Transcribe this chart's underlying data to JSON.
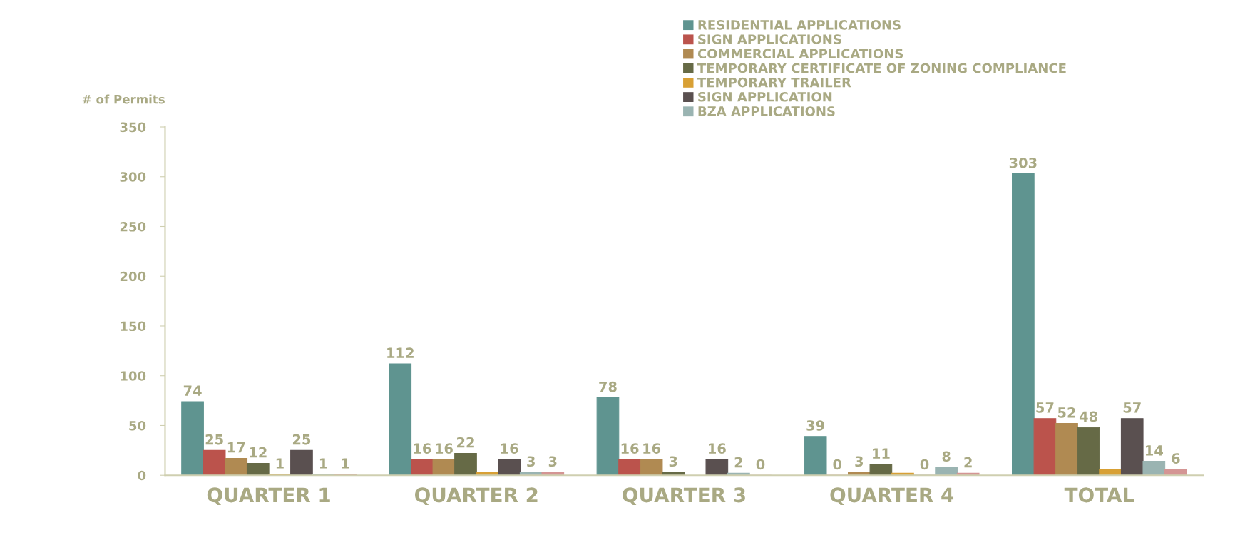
{
  "chart_data": {
    "type": "bar",
    "ylabel": "# of Permits",
    "categories": [
      "QUARTER 1",
      "QUARTER 2",
      "QUARTER 3",
      "QUARTER 4",
      "TOTAL"
    ],
    "series": [
      {
        "name": "RESIDENTIAL APPLICATIONS",
        "color": "#5f9490",
        "values": [
          74,
          112,
          78,
          39,
          303
        ]
      },
      {
        "name": "SIGN APPLICATIONS",
        "color": "#bb534c",
        "values": [
          25,
          16,
          16,
          0,
          57
        ]
      },
      {
        "name": "COMMERCIAL APPLICATIONS",
        "color": "#b08a52",
        "values": [
          17,
          16,
          16,
          3,
          52
        ]
      },
      {
        "name": "TEMPORARY CERTIFICATE OF ZONING COMPLIANCE",
        "color": "#666a46",
        "values": [
          12,
          22,
          3,
          11,
          48
        ]
      },
      {
        "name": "TEMPORARY TRAILER",
        "color": "#d8a035",
        "values": [
          1,
          3,
          null,
          2,
          6
        ],
        "value_labels": [
          "1",
          null,
          null,
          null,
          null
        ]
      },
      {
        "name": "SIGN APPLICATION",
        "color": "#5a5050",
        "values": [
          25,
          16,
          16,
          0,
          57
        ]
      },
      {
        "name": "BZA APPLICATIONS",
        "color": "#9ab4b2",
        "values": [
          1,
          3,
          2,
          8,
          14
        ]
      },
      {
        "color": "#d49594",
        "values": [
          1,
          3,
          0,
          2,
          6
        ]
      }
    ],
    "ylim": [
      0,
      350
    ],
    "yticks": [
      0,
      50,
      100,
      150,
      200,
      250,
      300,
      350
    ],
    "data_labels": true,
    "grid": false,
    "legend": "top right"
  }
}
